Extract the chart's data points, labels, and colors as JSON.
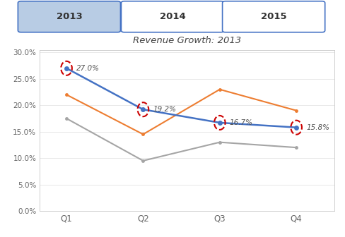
{
  "title": "Revenue Growth: 2013",
  "categories": [
    "Q1",
    "Q2",
    "Q3",
    "Q4"
  ],
  "blue_line": [
    0.27,
    0.192,
    0.167,
    0.158
  ],
  "orange_line": [
    0.22,
    0.145,
    0.23,
    0.19
  ],
  "gray_line": [
    0.175,
    0.095,
    0.13,
    0.12
  ],
  "blue_labels": [
    "27.0%",
    "19.2%",
    "16.7%",
    "15.8%"
  ],
  "blue_color": "#4472C4",
  "orange_color": "#ED7D31",
  "gray_color": "#A5A5A5",
  "highlight_circle_color": "#CC0000",
  "ylim": [
    0.0,
    0.305
  ],
  "yticks": [
    0.0,
    0.05,
    0.1,
    0.15,
    0.2,
    0.25,
    0.3
  ],
  "ytick_labels": [
    "0.0%",
    "5.0%",
    "10.0%",
    "15.0%",
    "20.0%",
    "25.0%",
    "30.0%"
  ],
  "tab_labels": [
    "2013",
    "2014",
    "2015"
  ],
  "tab_selected": 0,
  "tab_selected_bg": "#B8CCE4",
  "tab_unselected_bg": "#FFFFFF",
  "tab_border_color": "#4472C4",
  "background_color": "#FFFFFF",
  "chart_border_color": "#C8C8C8"
}
